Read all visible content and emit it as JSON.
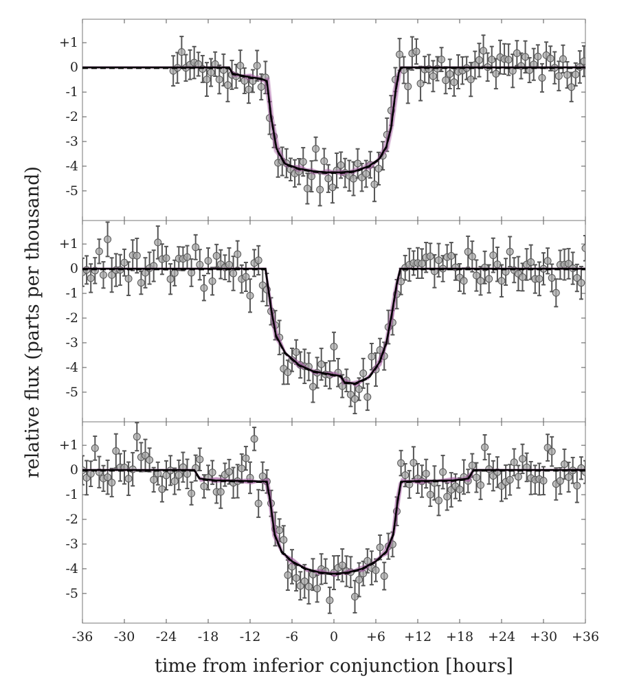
{
  "chart_data": {
    "type": "scatter",
    "xlabel": "time from inferior conjunction [hours]",
    "ylabel": "relative flux (parts per thousand)",
    "xlim": [
      -36,
      36
    ],
    "ylim": [
      -6.2,
      1.95
    ],
    "x_ticks": [
      -36,
      -30,
      -24,
      -18,
      -12,
      -6,
      0,
      6,
      12,
      18,
      24,
      30,
      36
    ],
    "x_tick_labels": [
      "-36",
      "-30",
      "-24",
      "-18",
      "-12",
      "-6",
      "0",
      "+6",
      "+12",
      "+18",
      "+24",
      "+30",
      "+36"
    ],
    "y_ticks": [
      1,
      0,
      -1,
      -2,
      -3,
      -4,
      -5
    ],
    "y_tick_labels": [
      "+1",
      "0",
      "-1",
      "-2",
      "-3",
      "-4",
      "-5"
    ],
    "panels": [
      {
        "name": "panel-top",
        "data_range": [
          -23,
          36
        ],
        "model_pre": [
          [
            -36,
            0
          ],
          [
            -15,
            0
          ],
          [
            -14.5,
            -0.25
          ],
          [
            -12,
            -0.4
          ],
          [
            -10.5,
            -0.45
          ],
          [
            -9.6,
            -0.55
          ],
          [
            -9.0,
            -2.0
          ],
          [
            -8.2,
            -3.3
          ],
          [
            -7,
            -3.9
          ],
          [
            -5,
            -4.1
          ],
          [
            -3,
            -4.2
          ],
          [
            -1,
            -4.25
          ],
          [
            1,
            -4.25
          ],
          [
            3,
            -4.2
          ],
          [
            5,
            -4.0
          ],
          [
            6.5,
            -3.7
          ],
          [
            7.5,
            -3.2
          ],
          [
            8.2,
            -2.4
          ],
          [
            8.8,
            -1.0
          ],
          [
            9.3,
            -0.2
          ],
          [
            9.6,
            0
          ],
          [
            36,
            0
          ]
        ],
        "model_pre_dash": true,
        "offsets": [
          [
            0,
            0,
            0,
            0
          ],
          [
            0.15,
            0.05,
            0.5,
            0.25
          ],
          [
            -0.15,
            -0.05,
            -0.4,
            0.3
          ],
          [
            0.3,
            0.08,
            0.8,
            -0.2
          ],
          [
            -0.25,
            -0.1,
            0.3,
            -0.35
          ],
          [
            0.1,
            0.12,
            -0.6,
            0.1
          ]
        ]
      },
      {
        "name": "panel-middle",
        "data_range": [
          -36,
          36
        ],
        "model_pre": [
          [
            -36,
            0
          ],
          [
            -9.8,
            0
          ],
          [
            -9.0,
            -1.6
          ],
          [
            -8.3,
            -2.7
          ],
          [
            -7.0,
            -3.4
          ],
          [
            -5,
            -3.9
          ],
          [
            -3,
            -4.15
          ],
          [
            0,
            -4.3
          ],
          [
            1,
            -4.35
          ],
          [
            1.5,
            -4.6
          ],
          [
            3,
            -4.65
          ],
          [
            5,
            -4.4
          ],
          [
            6.5,
            -3.8
          ],
          [
            7.5,
            -3.0
          ],
          [
            8.3,
            -1.8
          ],
          [
            9.0,
            -0.6
          ],
          [
            9.5,
            0
          ],
          [
            36,
            0
          ]
        ],
        "model_pre_dash": true,
        "offsets": [
          [
            0,
            0,
            0,
            0
          ],
          [
            0.1,
            0.05,
            0.3,
            0.2
          ],
          [
            -0.1,
            -0.07,
            -0.3,
            0.35
          ],
          [
            0.2,
            0.1,
            0.6,
            -0.25
          ],
          [
            -0.2,
            -0.05,
            0.2,
            -0.3
          ],
          [
            0.15,
            0.08,
            -0.5,
            0.15
          ]
        ]
      },
      {
        "name": "panel-bottom",
        "data_range": [
          -36,
          36
        ],
        "model_pre": [
          [
            -36,
            0
          ],
          [
            -20,
            0
          ],
          [
            -19.2,
            -0.35
          ],
          [
            -17,
            -0.42
          ],
          [
            -12,
            -0.45
          ],
          [
            -9.6,
            -0.47
          ],
          [
            -9.1,
            -1.3
          ],
          [
            -8.5,
            -2.6
          ],
          [
            -7.5,
            -3.3
          ],
          [
            -6,
            -3.7
          ],
          [
            -4,
            -4.0
          ],
          [
            -2,
            -4.15
          ],
          [
            0,
            -4.2
          ],
          [
            2,
            -4.15
          ],
          [
            4,
            -4.0
          ],
          [
            6,
            -3.7
          ],
          [
            7.5,
            -3.3
          ],
          [
            8.5,
            -2.6
          ],
          [
            9.1,
            -1.3
          ],
          [
            9.6,
            -0.47
          ],
          [
            12,
            -0.45
          ],
          [
            17,
            -0.42
          ],
          [
            19.2,
            -0.35
          ],
          [
            20,
            0
          ],
          [
            36,
            0
          ]
        ],
        "model_pre_dash": true,
        "offsets": [
          [
            0,
            0,
            0,
            0
          ],
          [
            0.1,
            0.05,
            0.5,
            0.3
          ],
          [
            -0.15,
            -0.06,
            -0.4,
            0.25
          ],
          [
            0.2,
            0.08,
            0.9,
            -0.3
          ],
          [
            -0.2,
            -0.07,
            0.3,
            -0.35
          ],
          [
            0.12,
            0.1,
            -0.7,
            0.2
          ]
        ]
      }
    ],
    "colors": {
      "model_line": "#000000",
      "posterior_draws": "#a05a9e",
      "marker_fill": "#a8a8a8",
      "marker_stroke": "#555555",
      "errorbar": "#555555",
      "frame": "#777777"
    }
  }
}
